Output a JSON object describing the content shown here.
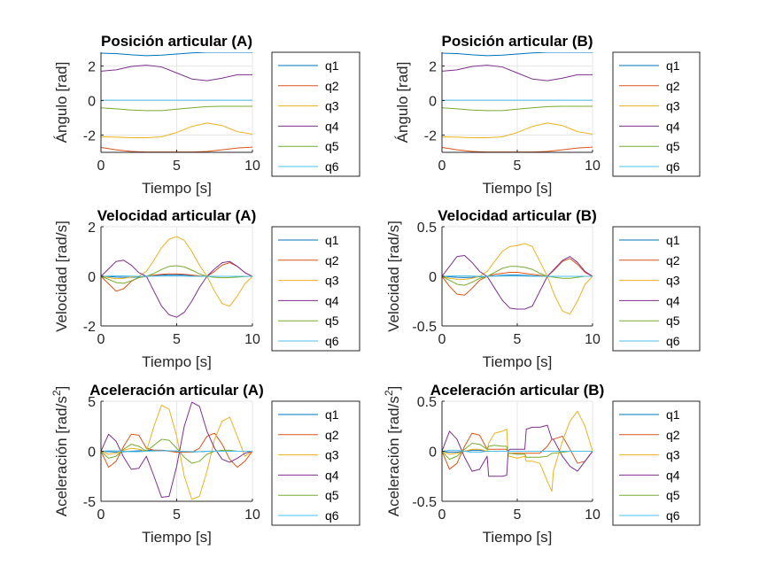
{
  "colors": {
    "q1": "#0072BD",
    "q2": "#D95319",
    "q3": "#EDB120",
    "q4": "#7E2F8E",
    "q5": "#77AC30",
    "q6": "#4DBEEE",
    "grid": "#e6e6e6",
    "axis": "#262626"
  },
  "chart_data": [
    {
      "type": "line",
      "title": "Posición articular (A)",
      "xlabel": "Tiempo [s]",
      "ylabel": "Ángulo [rad]",
      "xlim": [
        0,
        10
      ],
      "ylim": [
        -3,
        2.8
      ],
      "xticks": [
        0,
        5,
        10
      ],
      "yticks": [
        -2,
        0,
        2
      ],
      "grid": true,
      "legend": "right",
      "x": [
        0,
        1,
        2,
        3,
        4,
        5,
        6,
        7,
        8,
        9,
        10
      ],
      "series": [
        {
          "name": "q1",
          "values": [
            2.75,
            2.72,
            2.65,
            2.6,
            2.63,
            2.7,
            2.76,
            2.8,
            2.8,
            2.8,
            2.8
          ]
        },
        {
          "name": "q2",
          "values": [
            -2.72,
            -2.85,
            -2.95,
            -2.98,
            -2.98,
            -2.98,
            -2.98,
            -2.95,
            -2.85,
            -2.75,
            -2.7
          ]
        },
        {
          "name": "q3",
          "values": [
            -2.1,
            -2.12,
            -2.15,
            -2.15,
            -2.1,
            -1.85,
            -1.5,
            -1.3,
            -1.45,
            -1.8,
            -1.95
          ]
        },
        {
          "name": "q4",
          "values": [
            1.7,
            1.78,
            1.98,
            2.05,
            1.95,
            1.6,
            1.25,
            1.15,
            1.3,
            1.5,
            1.5
          ]
        },
        {
          "name": "q5",
          "values": [
            -0.42,
            -0.48,
            -0.55,
            -0.58,
            -0.58,
            -0.5,
            -0.42,
            -0.35,
            -0.33,
            -0.33,
            -0.33
          ]
        },
        {
          "name": "q6",
          "values": [
            0.02,
            0.02,
            0.02,
            0.02,
            0.02,
            0.02,
            0.02,
            0.02,
            0.02,
            0.02,
            0.02
          ]
        }
      ]
    },
    {
      "type": "line",
      "title": "Posición articular (B)",
      "xlabel": "Tiempo [s]",
      "ylabel": "Ángulo [rad]",
      "xlim": [
        0,
        10
      ],
      "ylim": [
        -3,
        2.8
      ],
      "xticks": [
        0,
        5,
        10
      ],
      "yticks": [
        -2,
        0,
        2
      ],
      "grid": true,
      "legend": "right",
      "x": [
        0,
        1,
        2,
        3,
        4,
        5,
        6,
        7,
        8,
        9,
        10
      ],
      "series": [
        {
          "name": "q1",
          "values": [
            2.75,
            2.72,
            2.65,
            2.6,
            2.63,
            2.7,
            2.76,
            2.8,
            2.8,
            2.8,
            2.8
          ]
        },
        {
          "name": "q2",
          "values": [
            -2.72,
            -2.85,
            -2.95,
            -2.98,
            -2.98,
            -2.98,
            -2.98,
            -2.95,
            -2.85,
            -2.75,
            -2.7
          ]
        },
        {
          "name": "q3",
          "values": [
            -2.1,
            -2.12,
            -2.15,
            -2.15,
            -2.1,
            -1.85,
            -1.5,
            -1.3,
            -1.45,
            -1.8,
            -1.95
          ]
        },
        {
          "name": "q4",
          "values": [
            1.7,
            1.78,
            1.98,
            2.05,
            1.95,
            1.6,
            1.25,
            1.15,
            1.3,
            1.5,
            1.5
          ]
        },
        {
          "name": "q5",
          "values": [
            -0.42,
            -0.48,
            -0.55,
            -0.58,
            -0.58,
            -0.5,
            -0.42,
            -0.35,
            -0.33,
            -0.33,
            -0.33
          ]
        },
        {
          "name": "q6",
          "values": [
            0.02,
            0.02,
            0.02,
            0.02,
            0.02,
            0.02,
            0.02,
            0.02,
            0.02,
            0.02,
            0.02
          ]
        }
      ]
    },
    {
      "type": "line",
      "title": "Velocidad articular (A)",
      "xlabel": "Tiempo [s]",
      "ylabel": "Velocidad [rad/s]",
      "xlim": [
        0,
        10
      ],
      "ylim": [
        -2,
        2
      ],
      "xticks": [
        0,
        5,
        10
      ],
      "yticks": [
        -2,
        0,
        2
      ],
      "grid": true,
      "legend": "right",
      "x": [
        0,
        0.5,
        1,
        1.5,
        2,
        2.5,
        3,
        3.5,
        4,
        4.5,
        5,
        5.5,
        6,
        6.5,
        7,
        7.5,
        8,
        8.5,
        9,
        9.5,
        10
      ],
      "series": [
        {
          "name": "q1",
          "values": [
            0,
            -0.01,
            -0.03,
            -0.04,
            -0.04,
            -0.03,
            0,
            0.03,
            0.05,
            0.06,
            0.06,
            0.05,
            0.03,
            0.01,
            0,
            0,
            0,
            0,
            0,
            0,
            0
          ]
        },
        {
          "name": "q2",
          "values": [
            0,
            -0.3,
            -0.6,
            -0.5,
            -0.2,
            -0.05,
            0,
            0.05,
            0.08,
            0.1,
            0.1,
            0.08,
            0.05,
            0.02,
            0,
            0.2,
            0.45,
            0.55,
            0.4,
            0.15,
            0
          ]
        },
        {
          "name": "q3",
          "values": [
            0,
            -0.05,
            -0.1,
            -0.08,
            -0.03,
            0,
            0.2,
            0.65,
            1.15,
            1.5,
            1.6,
            1.45,
            1.0,
            0.45,
            0,
            -0.6,
            -1.1,
            -1.2,
            -0.8,
            -0.3,
            0
          ]
        },
        {
          "name": "q4",
          "values": [
            0,
            0.3,
            0.6,
            0.65,
            0.45,
            0.15,
            0,
            -0.6,
            -1.2,
            -1.55,
            -1.65,
            -1.45,
            -1.0,
            -0.45,
            0,
            0.3,
            0.55,
            0.6,
            0.4,
            0.15,
            0
          ]
        },
        {
          "name": "q5",
          "values": [
            0,
            -0.12,
            -0.25,
            -0.28,
            -0.18,
            -0.05,
            0,
            0.12,
            0.28,
            0.4,
            0.43,
            0.38,
            0.25,
            0.1,
            0,
            -0.04,
            -0.06,
            -0.05,
            -0.03,
            -0.01,
            0
          ]
        },
        {
          "name": "q6",
          "values": [
            0,
            0.01,
            0.02,
            0.02,
            0.01,
            0,
            0,
            0.01,
            0.01,
            0.01,
            0.01,
            0.01,
            0,
            0,
            0,
            0,
            0,
            0,
            0,
            0,
            0
          ]
        }
      ]
    },
    {
      "type": "line",
      "title": "Velocidad articular (B)",
      "xlabel": "Tiempo [s]",
      "ylabel": "Velocidad [rad/s]",
      "xlim": [
        0,
        10
      ],
      "ylim": [
        -0.5,
        0.5
      ],
      "xticks": [
        0,
        5,
        10
      ],
      "yticks": [
        -0.5,
        0,
        0.5
      ],
      "grid": true,
      "legend": "right",
      "x": [
        0,
        0.5,
        1,
        1.5,
        2,
        2.5,
        3,
        3.5,
        4,
        4.5,
        5,
        5.5,
        6,
        6.5,
        7,
        7.5,
        8,
        8.5,
        9,
        9.5,
        10
      ],
      "series": [
        {
          "name": "q1",
          "values": [
            0,
            -0.005,
            -0.01,
            -0.012,
            -0.01,
            -0.005,
            0,
            0.005,
            0.01,
            0.012,
            0.012,
            0.01,
            0.006,
            0.002,
            0,
            0,
            0,
            0,
            0,
            0,
            0
          ]
        },
        {
          "name": "q2",
          "values": [
            0,
            -0.1,
            -0.18,
            -0.19,
            -0.12,
            -0.04,
            0,
            0.02,
            0.03,
            0.04,
            0.04,
            0.03,
            0.02,
            0.01,
            0,
            0.07,
            0.15,
            0.18,
            0.12,
            0.04,
            0
          ]
        },
        {
          "name": "q3",
          "values": [
            0,
            -0.02,
            -0.03,
            -0.03,
            -0.02,
            0,
            0.05,
            0.15,
            0.25,
            0.3,
            0.31,
            0.33,
            0.3,
            0.15,
            0,
            -0.2,
            -0.35,
            -0.38,
            -0.25,
            -0.08,
            0
          ]
        },
        {
          "name": "q4",
          "values": [
            0,
            0.1,
            0.2,
            0.21,
            0.14,
            0.05,
            0,
            -0.12,
            -0.24,
            -0.32,
            -0.33,
            -0.33,
            -0.3,
            -0.15,
            0,
            0.08,
            0.16,
            0.2,
            0.14,
            0.05,
            0
          ]
        },
        {
          "name": "q5",
          "values": [
            0,
            -0.04,
            -0.08,
            -0.09,
            -0.06,
            -0.02,
            0,
            0.04,
            0.08,
            0.1,
            0.1,
            0.09,
            0.07,
            0.03,
            0,
            -0.01,
            -0.02,
            -0.02,
            -0.01,
            0,
            0
          ]
        },
        {
          "name": "q6",
          "values": [
            0,
            0.003,
            0.005,
            0.005,
            0.003,
            0,
            0,
            0.002,
            0.003,
            0.003,
            0.003,
            0.002,
            0.001,
            0,
            0,
            0,
            0,
            0,
            0,
            0,
            0
          ]
        }
      ]
    },
    {
      "type": "line",
      "title": "Aceleración articular (A)",
      "xlabel": "Tiempo [s]",
      "ylabel": "Aceleración [rad/s",
      "ylabel_sup": "2",
      "ylabel_close": "]",
      "xlim": [
        0,
        10
      ],
      "ylim": [
        -5,
        5
      ],
      "xticks": [
        0,
        5,
        10
      ],
      "yticks": [
        -5,
        0,
        5
      ],
      "grid": true,
      "legend": "right",
      "x": [
        0,
        0.5,
        1,
        1.5,
        2,
        2.5,
        3,
        3.5,
        4,
        4.5,
        5,
        5.5,
        6,
        6.5,
        7,
        7.5,
        8,
        8.5,
        9,
        9.5,
        10
      ],
      "series": [
        {
          "name": "q1",
          "values": [
            0,
            -0.05,
            -0.08,
            -0.05,
            0,
            0.05,
            0.08,
            0.1,
            0.1,
            0.05,
            0,
            -0.05,
            -0.08,
            -0.05,
            0,
            0,
            0,
            0,
            0,
            0,
            0
          ]
        },
        {
          "name": "q2",
          "values": [
            0,
            -1.6,
            -1.0,
            0.5,
            1.7,
            1.6,
            0.3,
            0.1,
            0.1,
            0,
            -0.1,
            -0.1,
            -0.1,
            0.3,
            1.5,
            1.8,
            0.7,
            -0.8,
            -1.6,
            -1.0,
            0
          ]
        },
        {
          "name": "q3",
          "values": [
            0,
            -0.3,
            -0.2,
            0.1,
            0.3,
            0.2,
            0,
            2.5,
            4.6,
            4.2,
            1.5,
            -2.5,
            -4.8,
            -4.5,
            -2.0,
            1.2,
            3.0,
            3.4,
            1.5,
            -0.5,
            0
          ]
        },
        {
          "name": "q4",
          "values": [
            0,
            1.7,
            1.0,
            -0.6,
            -1.8,
            -1.7,
            -0.5,
            -2.5,
            -4.6,
            -4.5,
            -1.5,
            2.5,
            4.9,
            4.5,
            2.0,
            0.3,
            -0.8,
            -1.1,
            -0.7,
            -0.2,
            0
          ]
        },
        {
          "name": "q5",
          "values": [
            0,
            -0.7,
            -0.5,
            0.2,
            0.7,
            0.5,
            0,
            0.6,
            1.2,
            1.1,
            0.3,
            -0.6,
            -1.2,
            -1.0,
            -0.3,
            0,
            0.1,
            0.1,
            0,
            0,
            0
          ]
        },
        {
          "name": "q6",
          "values": [
            0,
            0.05,
            0.05,
            0,
            -0.05,
            -0.05,
            0,
            0.03,
            0.05,
            0.05,
            0.02,
            -0.02,
            -0.05,
            -0.04,
            -0.01,
            0,
            0,
            0,
            0,
            0,
            0
          ]
        }
      ]
    },
    {
      "type": "line",
      "title": "Aceleración articular (B)",
      "xlabel": "Tiempo [s]",
      "ylabel": "Aceleración [rad/s",
      "ylabel_sup": "2",
      "ylabel_close": "]",
      "xlim": [
        0,
        10
      ],
      "ylim": [
        -0.5,
        0.5
      ],
      "xticks": [
        0,
        5,
        10
      ],
      "yticks": [
        -0.5,
        0,
        0.5
      ],
      "grid": true,
      "legend": "right",
      "x": [
        0,
        0.5,
        1,
        1.5,
        2,
        2.5,
        3,
        3.1,
        3.5,
        4,
        4.3,
        4.4,
        4.5,
        5,
        5.5,
        5.6,
        6,
        6.5,
        7,
        7.3,
        7.4,
        8,
        8.5,
        9,
        9.5,
        10
      ],
      "series": [
        {
          "name": "q1",
          "values": [
            0,
            -0.01,
            -0.01,
            0,
            0.01,
            0.01,
            0,
            0,
            0,
            0,
            0,
            0,
            0,
            0,
            0,
            0,
            0,
            0,
            0,
            0,
            0,
            0,
            0,
            0,
            0,
            0
          ]
        },
        {
          "name": "q2",
          "values": [
            0,
            -0.18,
            -0.12,
            0.05,
            0.18,
            0.16,
            0.02,
            0.02,
            0.02,
            0.02,
            0.02,
            -0.02,
            -0.02,
            -0.02,
            -0.02,
            -0.02,
            -0.02,
            -0.02,
            0.05,
            0.12,
            0.12,
            0.15,
            0.02,
            -0.12,
            -0.1,
            0
          ]
        },
        {
          "name": "q3",
          "values": [
            0,
            -0.03,
            -0.02,
            0,
            0.02,
            0.02,
            0,
            0.08,
            0.18,
            0.2,
            0.22,
            -0.05,
            -0.05,
            -0.07,
            -0.05,
            -0.1,
            -0.1,
            -0.12,
            -0.3,
            -0.4,
            -0.2,
            0.1,
            0.3,
            0.4,
            0.25,
            0
          ]
        },
        {
          "name": "q4",
          "values": [
            0,
            0.2,
            0.12,
            -0.06,
            -0.2,
            -0.18,
            -0.05,
            -0.25,
            -0.25,
            -0.25,
            -0.24,
            0,
            0.02,
            0.02,
            0.02,
            0.22,
            0.24,
            0.24,
            0.26,
            0.12,
            0.12,
            -0.05,
            -0.15,
            -0.2,
            -0.1,
            0
          ]
        },
        {
          "name": "q5",
          "values": [
            0,
            -0.08,
            -0.05,
            0.02,
            0.08,
            0.07,
            0.02,
            0.05,
            0.06,
            0.05,
            0.05,
            -0.02,
            -0.02,
            -0.03,
            -0.03,
            -0.06,
            -0.06,
            -0.06,
            -0.05,
            -0.02,
            -0.02,
            -0.01,
            0,
            0,
            0,
            0
          ]
        },
        {
          "name": "q6",
          "values": [
            0,
            0.01,
            0.01,
            0,
            -0.01,
            -0.01,
            0,
            0,
            0,
            0,
            0,
            0,
            0,
            0,
            0,
            0,
            0,
            0,
            0,
            0,
            0,
            0,
            0,
            0,
            0,
            0
          ]
        }
      ]
    }
  ]
}
